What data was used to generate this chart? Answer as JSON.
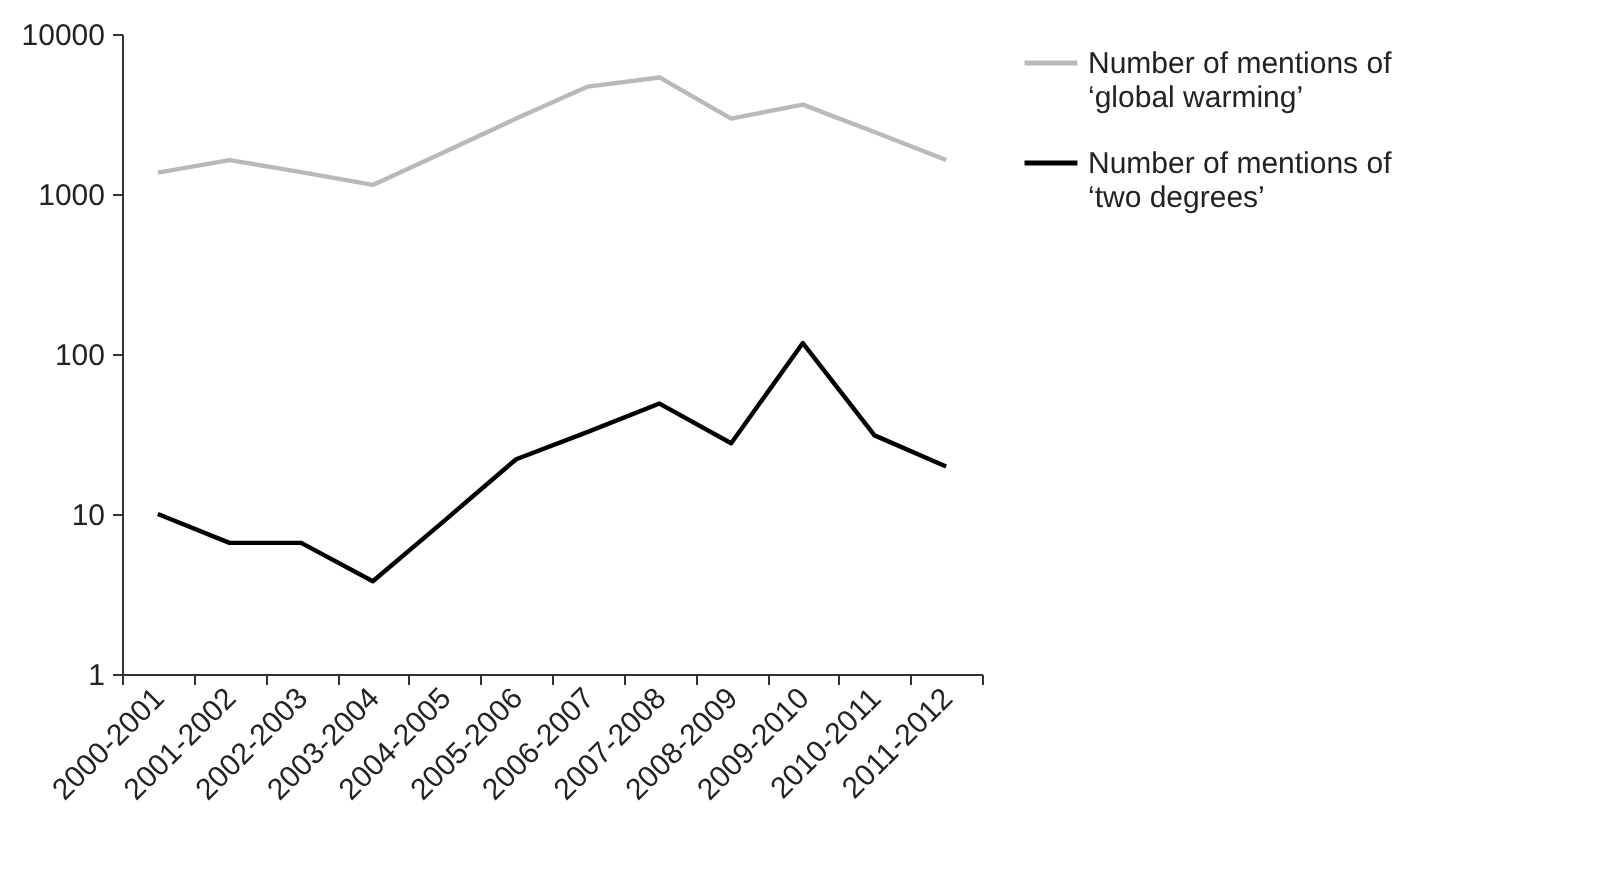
{
  "chart_data": {
    "type": "line",
    "categories": [
      "2000-2001",
      "2001-2002",
      "2002-2003",
      "2003-2004",
      "2004-2005",
      "2005-2006",
      "2006-2007",
      "2007-2008",
      "2008-2009",
      "2009-2010",
      "2010-2011",
      "2011-2012"
    ],
    "series": [
      {
        "name": "Number of mentions of ‘global warming’",
        "color": "#b9b9b9",
        "values": [
          1360,
          1630,
          1370,
          1140,
          1830,
          2960,
          4690,
          5350,
          2960,
          3620,
          2440,
          1630
        ]
      },
      {
        "name": "Number of mentions of ‘two degrees’",
        "color": "#000000",
        "values": [
          10,
          6.6,
          6.6,
          3.8,
          9.1,
          22,
          32.6,
          49,
          27.7,
          117,
          31,
          19.8
        ]
      }
    ],
    "log": "y",
    "ylim": [
      1,
      10000
    ],
    "yticks": [
      1,
      10,
      100,
      1000,
      10000
    ],
    "grid": false,
    "legend": "right",
    "marker": "none",
    "line_style": "solid"
  }
}
